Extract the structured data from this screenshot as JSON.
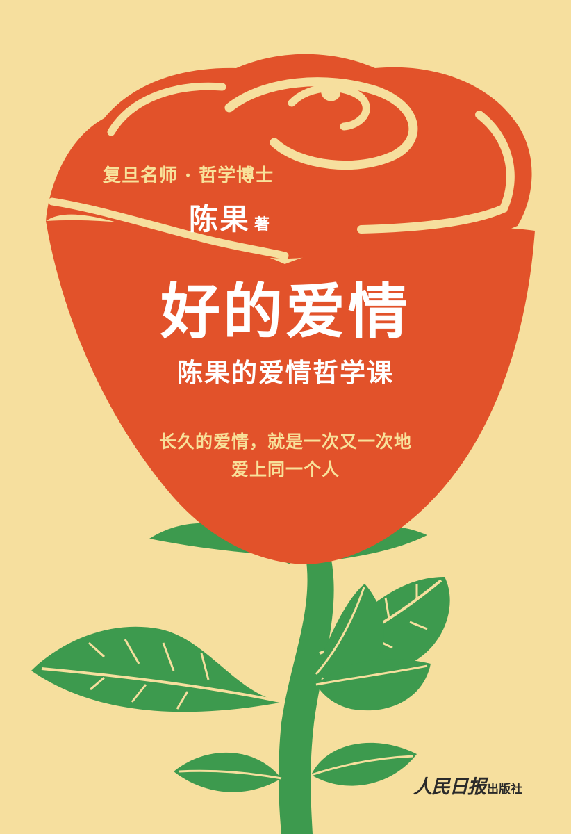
{
  "cover": {
    "tagline": "复旦名师 · 哲学博士",
    "author_name": "陈果",
    "author_role": "著",
    "title": "好的爱情",
    "subtitle": "陈果的爱情哲学课",
    "quote_line1": "长久的爱情，就是一次又一次地",
    "quote_line2": "爱上同一个人",
    "publisher_logo": "人民日报",
    "publisher_suffix": "出版社"
  },
  "illustration": {
    "subject": "rose-illustration",
    "colors": {
      "background": "#f6df9e",
      "petal": "#e2522a",
      "petal_light_stroke": "#f6df9e",
      "leaf": "#3d9a4e",
      "leaf_dark": "#2f7f3e"
    }
  }
}
